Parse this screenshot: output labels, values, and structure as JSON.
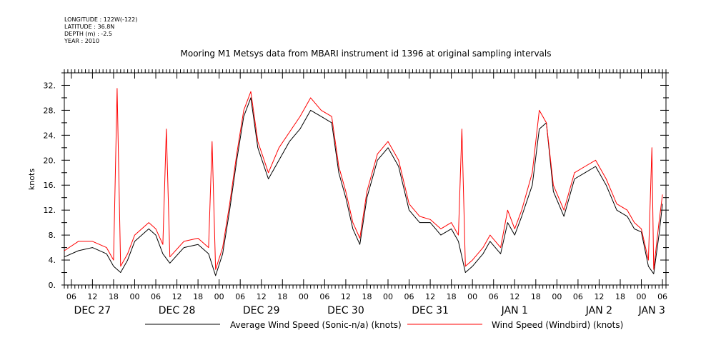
{
  "metadata": {
    "longitude": "LONGITUDE : 122W(-122)",
    "latitude": "LATITUDE : 36.8N",
    "depth": "DEPTH (m) : -2.5",
    "year": "YEAR : 2010"
  },
  "chart_data": {
    "type": "line",
    "title": "Mooring M1 Metsys data from MBARI instrument id 1396 at original sampling intervals",
    "ylabel": "knots",
    "xlabel": "",
    "ylim": [
      0,
      34
    ],
    "xlim": [
      "2010-12-27T04:00",
      "2011-01-03T07:00"
    ],
    "y_ticks": [
      0,
      4,
      8,
      12,
      16,
      20,
      24,
      28,
      32
    ],
    "y_tick_labels": [
      "0.",
      "4.",
      "8.",
      "12.",
      "16.",
      "20.",
      "24.",
      "28.",
      "32."
    ],
    "x_hour_ticks": [
      {
        "t": "2010-12-27T06:00",
        "label": "06"
      },
      {
        "t": "2010-12-27T12:00",
        "label": "12"
      },
      {
        "t": "2010-12-27T18:00",
        "label": "18"
      },
      {
        "t": "2010-12-28T00:00",
        "label": "00"
      },
      {
        "t": "2010-12-28T06:00",
        "label": "06"
      },
      {
        "t": "2010-12-28T12:00",
        "label": "12"
      },
      {
        "t": "2010-12-28T18:00",
        "label": "18"
      },
      {
        "t": "2010-12-29T00:00",
        "label": "00"
      },
      {
        "t": "2010-12-29T06:00",
        "label": "06"
      },
      {
        "t": "2010-12-29T12:00",
        "label": "12"
      },
      {
        "t": "2010-12-29T18:00",
        "label": "18"
      },
      {
        "t": "2010-12-30T00:00",
        "label": "00"
      },
      {
        "t": "2010-12-30T06:00",
        "label": "06"
      },
      {
        "t": "2010-12-30T12:00",
        "label": "12"
      },
      {
        "t": "2010-12-30T18:00",
        "label": "18"
      },
      {
        "t": "2010-12-31T00:00",
        "label": "00"
      },
      {
        "t": "2010-12-31T06:00",
        "label": "06"
      },
      {
        "t": "2010-12-31T12:00",
        "label": "12"
      },
      {
        "t": "2010-12-31T18:00",
        "label": "18"
      },
      {
        "t": "2011-01-01T00:00",
        "label": "00"
      },
      {
        "t": "2011-01-01T06:00",
        "label": "06"
      },
      {
        "t": "2011-01-01T12:00",
        "label": "12"
      },
      {
        "t": "2011-01-01T18:00",
        "label": "18"
      },
      {
        "t": "2011-01-02T00:00",
        "label": "00"
      },
      {
        "t": "2011-01-02T06:00",
        "label": "06"
      },
      {
        "t": "2011-01-02T12:00",
        "label": "12"
      },
      {
        "t": "2011-01-02T18:00",
        "label": "18"
      },
      {
        "t": "2011-01-03T00:00",
        "label": "00"
      },
      {
        "t": "2011-01-03T06:00",
        "label": "06"
      }
    ],
    "x_day_labels": [
      {
        "t": "2010-12-27T12:00",
        "label": "DEC 27"
      },
      {
        "t": "2010-12-28T12:00",
        "label": "DEC 28"
      },
      {
        "t": "2010-12-29T12:00",
        "label": "DEC 29"
      },
      {
        "t": "2010-12-30T12:00",
        "label": "DEC 30"
      },
      {
        "t": "2010-12-31T12:00",
        "label": "DEC 31"
      },
      {
        "t": "2011-01-01T12:00",
        "label": "JAN  1"
      },
      {
        "t": "2011-01-02T12:00",
        "label": "JAN  2"
      },
      {
        "t": "2011-01-03T03:00",
        "label": "JAN  3"
      }
    ],
    "grid": false,
    "legend_position": "bottom",
    "series": [
      {
        "name": "Average Wind Speed (Sonic-n/a) (knots)",
        "color": "#000000",
        "x": [
          "2010-12-27T04:00",
          "2010-12-27T08:00",
          "2010-12-27T12:00",
          "2010-12-27T16:00",
          "2010-12-27T18:00",
          "2010-12-27T20:00",
          "2010-12-27T22:00",
          "2010-12-28T00:00",
          "2010-12-28T04:00",
          "2010-12-28T06:00",
          "2010-12-28T08:00",
          "2010-12-28T10:00",
          "2010-12-28T14:00",
          "2010-12-28T18:00",
          "2010-12-28T21:00",
          "2010-12-28T23:00",
          "2010-12-29T01:00",
          "2010-12-29T03:00",
          "2010-12-29T05:00",
          "2010-12-29T07:00",
          "2010-12-29T09:00",
          "2010-12-29T11:00",
          "2010-12-29T14:00",
          "2010-12-29T17:00",
          "2010-12-29T20:00",
          "2010-12-29T23:00",
          "2010-12-30T02:00",
          "2010-12-30T05:00",
          "2010-12-30T08:00",
          "2010-12-30T10:00",
          "2010-12-30T12:00",
          "2010-12-30T14:00",
          "2010-12-30T16:00",
          "2010-12-30T18:00",
          "2010-12-30T21:00",
          "2010-12-31T00:00",
          "2010-12-31T03:00",
          "2010-12-31T06:00",
          "2010-12-31T09:00",
          "2010-12-31T12:00",
          "2010-12-31T15:00",
          "2010-12-31T18:00",
          "2010-12-31T20:00",
          "2010-12-31T22:00",
          "2011-01-01T00:00",
          "2011-01-01T03:00",
          "2011-01-01T05:00",
          "2011-01-01T08:00",
          "2011-01-01T10:00",
          "2011-01-01T12:00",
          "2011-01-01T14:00",
          "2011-01-01T17:00",
          "2011-01-01T19:00",
          "2011-01-01T21:00",
          "2011-01-01T23:00",
          "2011-01-02T02:00",
          "2011-01-02T05:00",
          "2011-01-02T08:00",
          "2011-01-02T11:00",
          "2011-01-02T14:00",
          "2011-01-02T17:00",
          "2011-01-02T20:00",
          "2011-01-02T22:00",
          "2011-01-03T00:00",
          "2011-01-03T02:00",
          "2011-01-03T03:30",
          "2011-01-03T05:00",
          "2011-01-03T06:00"
        ],
        "values": [
          4.5,
          5.5,
          6.0,
          5.0,
          3.0,
          2.0,
          4.0,
          7.0,
          9.0,
          8.0,
          5.0,
          3.5,
          6.0,
          6.5,
          5.0,
          1.5,
          5.0,
          12.0,
          20.0,
          27.0,
          30.0,
          22.0,
          17.0,
          20.0,
          23.0,
          25.0,
          28.0,
          27.0,
          26.0,
          18.0,
          14.0,
          9.0,
          6.5,
          14.0,
          20.0,
          22.0,
          19.0,
          12.0,
          10.0,
          10.0,
          8.0,
          9.0,
          7.0,
          2.0,
          3.0,
          5.0,
          7.0,
          5.0,
          10.0,
          8.0,
          11.0,
          16.0,
          25.0,
          26.0,
          15.0,
          11.0,
          17.0,
          18.0,
          19.0,
          16.0,
          12.0,
          11.0,
          9.0,
          8.5,
          3.0,
          1.8,
          8.0,
          13.0
        ]
      },
      {
        "name": "Wind Speed (Windbird) (knots)",
        "color": "#ff0000",
        "x": [
          "2010-12-27T04:00",
          "2010-12-27T08:00",
          "2010-12-27T12:00",
          "2010-12-27T16:00",
          "2010-12-27T18:00",
          "2010-12-27T19:00",
          "2010-12-27T20:00",
          "2010-12-27T22:00",
          "2010-12-28T00:00",
          "2010-12-28T04:00",
          "2010-12-28T06:00",
          "2010-12-28T08:00",
          "2010-12-28T09:00",
          "2010-12-28T10:00",
          "2010-12-28T14:00",
          "2010-12-28T18:00",
          "2010-12-28T21:00",
          "2010-12-28T22:00",
          "2010-12-28T23:00",
          "2010-12-29T01:00",
          "2010-12-29T03:00",
          "2010-12-29T05:00",
          "2010-12-29T07:00",
          "2010-12-29T09:00",
          "2010-12-29T11:00",
          "2010-12-29T14:00",
          "2010-12-29T17:00",
          "2010-12-29T20:00",
          "2010-12-29T23:00",
          "2010-12-30T02:00",
          "2010-12-30T05:00",
          "2010-12-30T08:00",
          "2010-12-30T10:00",
          "2010-12-30T12:00",
          "2010-12-30T14:00",
          "2010-12-30T16:00",
          "2010-12-30T18:00",
          "2010-12-30T21:00",
          "2010-12-31T00:00",
          "2010-12-31T03:00",
          "2010-12-31T06:00",
          "2010-12-31T09:00",
          "2010-12-31T12:00",
          "2010-12-31T15:00",
          "2010-12-31T18:00",
          "2010-12-31T20:00",
          "2010-12-31T21:00",
          "2010-12-31T22:00",
          "2011-01-01T00:00",
          "2011-01-01T03:00",
          "2011-01-01T05:00",
          "2011-01-01T08:00",
          "2011-01-01T10:00",
          "2011-01-01T12:00",
          "2011-01-01T14:00",
          "2011-01-01T17:00",
          "2011-01-01T19:00",
          "2011-01-01T21:00",
          "2011-01-01T23:00",
          "2011-01-02T02:00",
          "2011-01-02T05:00",
          "2011-01-02T08:00",
          "2011-01-02T11:00",
          "2011-01-02T14:00",
          "2011-01-02T17:00",
          "2011-01-02T20:00",
          "2011-01-02T22:00",
          "2011-01-03T00:00",
          "2011-01-03T02:00",
          "2011-01-03T03:00",
          "2011-01-03T03:30",
          "2011-01-03T05:00",
          "2011-01-03T06:00"
        ],
        "values": [
          5.5,
          7.0,
          7.0,
          6.0,
          4.0,
          31.5,
          3.0,
          5.0,
          8.0,
          10.0,
          9.0,
          6.5,
          25.0,
          4.5,
          7.0,
          7.5,
          6.0,
          23.0,
          2.5,
          6.0,
          13.0,
          21.0,
          28.0,
          31.0,
          23.0,
          18.0,
          22.0,
          24.5,
          27.0,
          30.0,
          28.0,
          27.0,
          19.0,
          15.0,
          10.0,
          7.5,
          15.0,
          21.0,
          23.0,
          20.0,
          13.0,
          11.0,
          10.5,
          9.0,
          10.0,
          8.0,
          25.0,
          3.0,
          4.0,
          6.0,
          8.0,
          6.0,
          12.0,
          9.0,
          12.0,
          18.0,
          28.0,
          26.0,
          16.0,
          12.0,
          18.0,
          19.0,
          20.0,
          17.0,
          13.0,
          12.0,
          10.0,
          9.0,
          4.0,
          22.0,
          2.5,
          10.0,
          14.5
        ]
      }
    ]
  }
}
